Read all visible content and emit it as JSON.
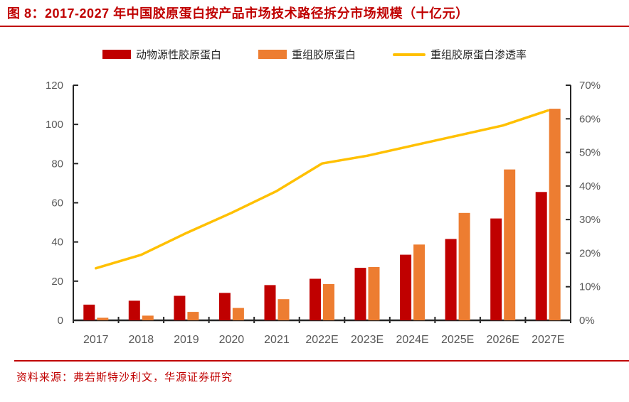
{
  "header": {
    "title": "图 8：2017-2027 年中国胶原蛋白按产品市场技术路径拆分市场规模（十亿元）"
  },
  "legend": [
    {
      "id": "animal-collagen",
      "label": "动物源性胶原蛋白",
      "type": "bar",
      "color": "#C00000"
    },
    {
      "id": "recombinant-collagen",
      "label": "重组胶原蛋白",
      "type": "bar",
      "color": "#ED7D31"
    },
    {
      "id": "penetration-rate",
      "label": "重组胶原蛋白渗透率",
      "type": "line",
      "color": "#FFC000"
    }
  ],
  "footer": {
    "source": "资料来源：弗若斯特沙利文，华源证券研究"
  },
  "colors": {
    "title_red": "#C00000",
    "animal_bar": "#C00000",
    "recombinant_bar": "#ED7D31",
    "penetration_line": "#FFC000",
    "axis_line": "#262626",
    "tick_label": "#595959"
  },
  "chart_data": {
    "type": "bar",
    "subtype": "grouped-bars-with-line",
    "title": "2017-2027 年中国胶原蛋白按产品市场技术路径拆分市场规模（十亿元）",
    "categories": [
      "2017",
      "2018",
      "2019",
      "2020",
      "2021",
      "2022E",
      "2023E",
      "2024E",
      "2025E",
      "2026E",
      "2027E"
    ],
    "series": [
      {
        "id": "animal-collagen",
        "name": "动物源性胶原蛋白",
        "type": "bar",
        "axis": "left",
        "color": "#C00000",
        "values": [
          8,
          10,
          12.5,
          14,
          18,
          21.2,
          26.8,
          33.5,
          41.5,
          52,
          65.5
        ]
      },
      {
        "id": "recombinant-collagen",
        "name": "重组胶原蛋白",
        "type": "bar",
        "axis": "left",
        "color": "#ED7D31",
        "values": [
          1.3,
          2.4,
          4.3,
          6.3,
          10.8,
          18.5,
          27.2,
          38.7,
          54.8,
          77,
          108
        ]
      },
      {
        "id": "penetration-rate",
        "name": "重组胶原蛋白渗透率",
        "type": "line",
        "axis": "right",
        "color": "#FFC000",
        "values": [
          15.5,
          19.5,
          26,
          32,
          38.5,
          46.7,
          49,
          52,
          55,
          58,
          62.5
        ]
      }
    ],
    "left_axis": {
      "min": 0,
      "max": 120,
      "step": 20,
      "suffix": ""
    },
    "right_axis": {
      "min": 0,
      "max": 70,
      "step": 10,
      "suffix": "%"
    },
    "xlabel": "",
    "ylabel": "",
    "grid": false,
    "legend_position": "top"
  }
}
